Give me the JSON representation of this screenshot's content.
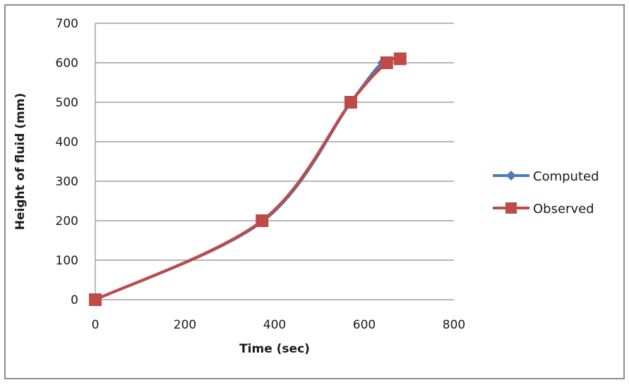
{
  "chart_data": {
    "type": "line",
    "title": "",
    "xlabel": "Time (sec)",
    "ylabel": "Height of fluid (mm)",
    "xlim": [
      0,
      800
    ],
    "ylim": [
      0,
      700
    ],
    "x_ticks": [
      "0",
      "200",
      "400",
      "600",
      "800"
    ],
    "y_ticks": [
      "0",
      "100",
      "200",
      "300",
      "400",
      "500",
      "600",
      "700"
    ],
    "grid": {
      "horizontal": true,
      "vertical": false
    },
    "legend_position": "right",
    "series": [
      {
        "name": "Computed",
        "color": "#4a7ebb",
        "marker": "diamond",
        "smooth": true,
        "points": [
          [
            0,
            0
          ],
          [
            375,
            200
          ],
          [
            570,
            500
          ],
          [
            640,
            600
          ],
          [
            680,
            610
          ]
        ]
      },
      {
        "name": "Observed",
        "color": "#be4b48",
        "marker": "square",
        "smooth": true,
        "points": [
          [
            0,
            0
          ],
          [
            372,
            200
          ],
          [
            570,
            500
          ],
          [
            650,
            600
          ],
          [
            680,
            610
          ]
        ]
      }
    ]
  },
  "legend": {
    "computed_label": "Computed",
    "observed_label": "Observed"
  }
}
